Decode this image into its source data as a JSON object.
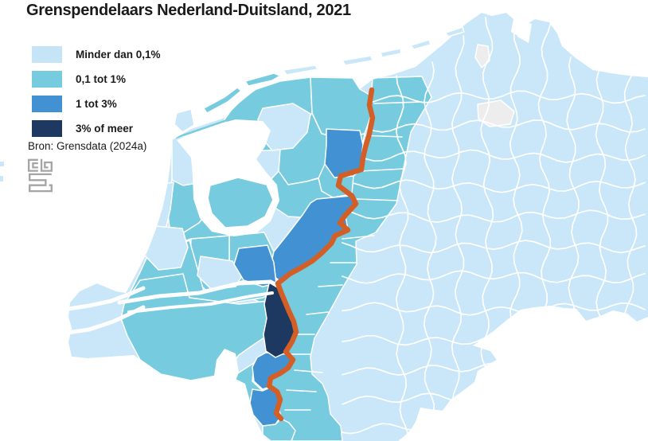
{
  "title": "Grenspendelaars Nederland-Duitsland, 2021",
  "legend": {
    "items": [
      {
        "label": "Minder dan  0,1%",
        "color": "#c5e4f6"
      },
      {
        "label": "0,1 tot 1%",
        "color": "#76cbdf"
      },
      {
        "label": "1 tot 3%",
        "color": "#4292d3"
      },
      {
        "label": "3% of meer",
        "color": "#1d3861"
      }
    ],
    "source": "Bron: Grensdata (2024a)"
  },
  "map": {
    "type": "choropleth",
    "border_line": {
      "label": "grens Nederland-Duitsland",
      "color": "#d45f26"
    },
    "sea_color": "#ffffff",
    "region_border_color": "#ffffff",
    "no_data_color": "#ededed",
    "region_fill_light": "#c9e7f8"
  },
  "logo": {
    "name": "cbs",
    "color": "#a5a5a5"
  }
}
